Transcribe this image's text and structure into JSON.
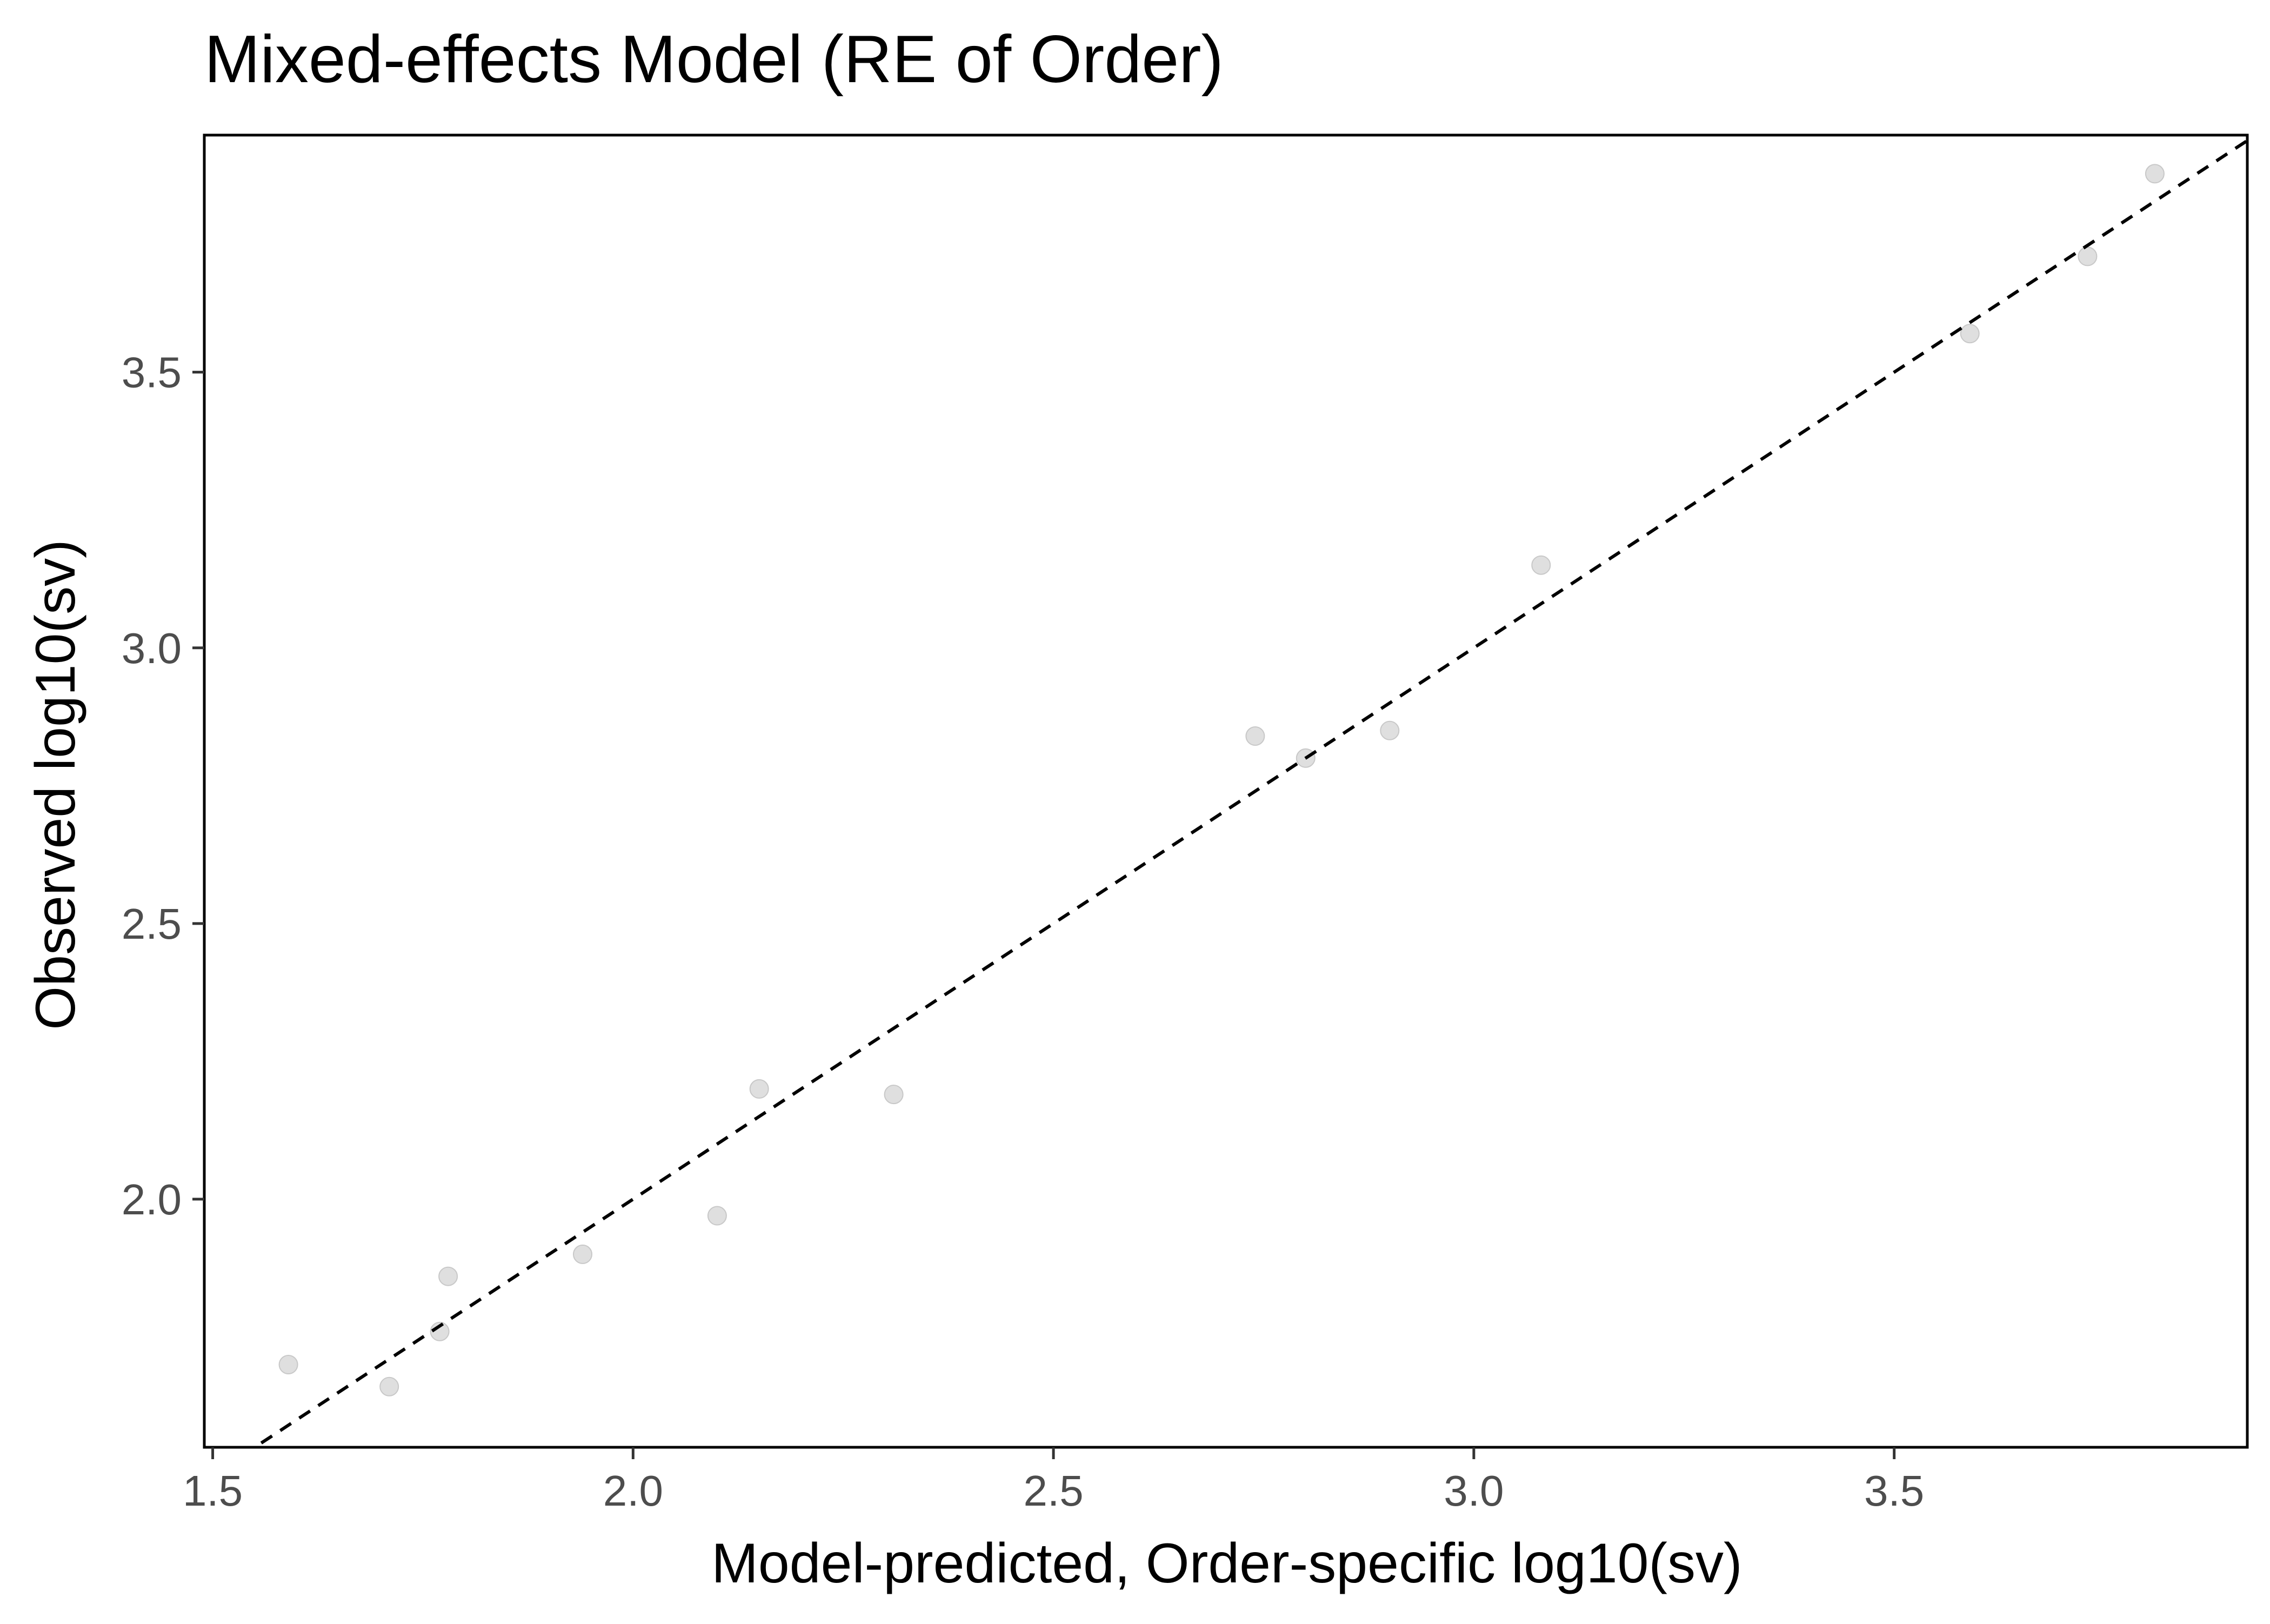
{
  "chart_data": {
    "type": "scatter",
    "title": "Mixed-effects Model (RE of Order)",
    "xlabel": "Model-predicted, Order-specific log10(sv)",
    "ylabel": "Observed log10(sv)",
    "xlim": [
      1.49,
      3.92
    ],
    "ylim": [
      1.55,
      3.93
    ],
    "x_ticks": [
      1.5,
      2.0,
      2.5,
      3.0,
      3.5
    ],
    "y_ticks": [
      2.0,
      2.5,
      3.0,
      3.5
    ],
    "x_tick_labels": [
      "1.5",
      "2.0",
      "2.5",
      "3.0",
      "3.5"
    ],
    "y_tick_labels": [
      "2.0",
      "2.5",
      "3.0",
      "3.5"
    ],
    "grid": false,
    "reference_line": {
      "type": "identity",
      "style": "dashed",
      "color": "#000000"
    },
    "point_color": "#d9d9d9",
    "series": [
      {
        "x": [
          1.59,
          1.71,
          1.77,
          1.78,
          1.94,
          2.1,
          2.15,
          2.31,
          2.74,
          2.8,
          2.9,
          3.08,
          3.59,
          3.73,
          3.81
        ],
        "y": [
          1.7,
          1.66,
          1.76,
          1.86,
          1.9,
          1.97,
          2.2,
          2.19,
          2.84,
          2.8,
          2.85,
          3.15,
          3.57,
          3.71,
          3.86
        ]
      }
    ]
  }
}
